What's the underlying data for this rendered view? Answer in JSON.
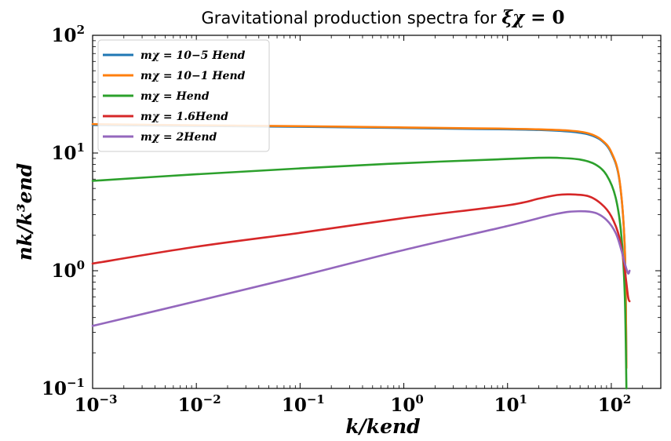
{
  "chart_data": {
    "type": "line",
    "title": "Gravitational production spectra for ξχ = 0",
    "xlabel": "k/kend",
    "ylabel": "nk/k³end",
    "xscale": "log",
    "yscale": "log",
    "xlim": [
      0.001,
      300
    ],
    "ylim": [
      0.1,
      100
    ],
    "xticks": [
      {
        "value": 0.001,
        "base": "10",
        "exp": "−3"
      },
      {
        "value": 0.01,
        "base": "10",
        "exp": "−2"
      },
      {
        "value": 0.1,
        "base": "10",
        "exp": "−1"
      },
      {
        "value": 1,
        "base": "10",
        "exp": "0"
      },
      {
        "value": 10,
        "base": "10",
        "exp": "1"
      },
      {
        "value": 100,
        "base": "10",
        "exp": "2"
      }
    ],
    "yticks": [
      {
        "value": 0.1,
        "base": "10",
        "exp": "−1"
      },
      {
        "value": 1,
        "base": "10",
        "exp": "0"
      },
      {
        "value": 10,
        "base": "10",
        "exp": "1"
      },
      {
        "value": 100,
        "base": "10",
        "exp": "2"
      }
    ],
    "legend_position": "upper-left",
    "grid": false,
    "series": [
      {
        "name": "mχ = 10−5 Hend",
        "color": "#1f77b4",
        "x": [
          0.001,
          0.01,
          0.1,
          1,
          5,
          10,
          20,
          40,
          60,
          80,
          100,
          120,
          135,
          140
        ],
        "y": [
          17.3,
          17.0,
          16.7,
          16.3,
          16.0,
          15.9,
          15.7,
          15.2,
          14.4,
          12.8,
          10.0,
          5.8,
          1.5,
          0.15
        ]
      },
      {
        "name": "mχ = 10−1 Hend",
        "color": "#ff7f0e",
        "x": [
          0.001,
          0.01,
          0.1,
          1,
          5,
          10,
          20,
          40,
          60,
          80,
          100,
          120,
          135,
          140
        ],
        "y": [
          17.6,
          17.2,
          16.9,
          16.5,
          16.2,
          16.1,
          15.9,
          15.5,
          14.7,
          13.0,
          10.2,
          5.9,
          1.5,
          0.15
        ]
      },
      {
        "name": "mχ = Hend",
        "color": "#2ca02c",
        "x": [
          0.001,
          0.01,
          0.1,
          1,
          10,
          20,
          30,
          50,
          70,
          90,
          110,
          125,
          135,
          140
        ],
        "y": [
          5.8,
          6.6,
          7.4,
          8.2,
          8.9,
          9.1,
          9.1,
          8.8,
          8.0,
          6.5,
          4.2,
          2.0,
          0.6,
          0.1
        ]
      },
      {
        "name": "mχ = 1.6Hend",
        "color": "#d62728",
        "x": [
          0.001,
          0.01,
          0.1,
          1,
          10,
          20,
          30,
          40,
          60,
          80,
          100,
          120,
          135,
          145,
          150
        ],
        "y": [
          1.15,
          1.6,
          2.1,
          2.8,
          3.6,
          4.1,
          4.4,
          4.45,
          4.3,
          3.7,
          2.9,
          1.9,
          1.0,
          0.6,
          0.55
        ]
      },
      {
        "name": "mχ = 2Hend",
        "color": "#9467bd",
        "x": [
          0.001,
          0.01,
          0.1,
          1,
          10,
          30,
          50,
          70,
          90,
          110,
          125,
          135,
          145,
          150
        ],
        "y": [
          0.34,
          0.55,
          0.9,
          1.5,
          2.4,
          3.05,
          3.2,
          3.1,
          2.7,
          2.1,
          1.5,
          1.15,
          0.95,
          1.0
        ]
      }
    ]
  }
}
